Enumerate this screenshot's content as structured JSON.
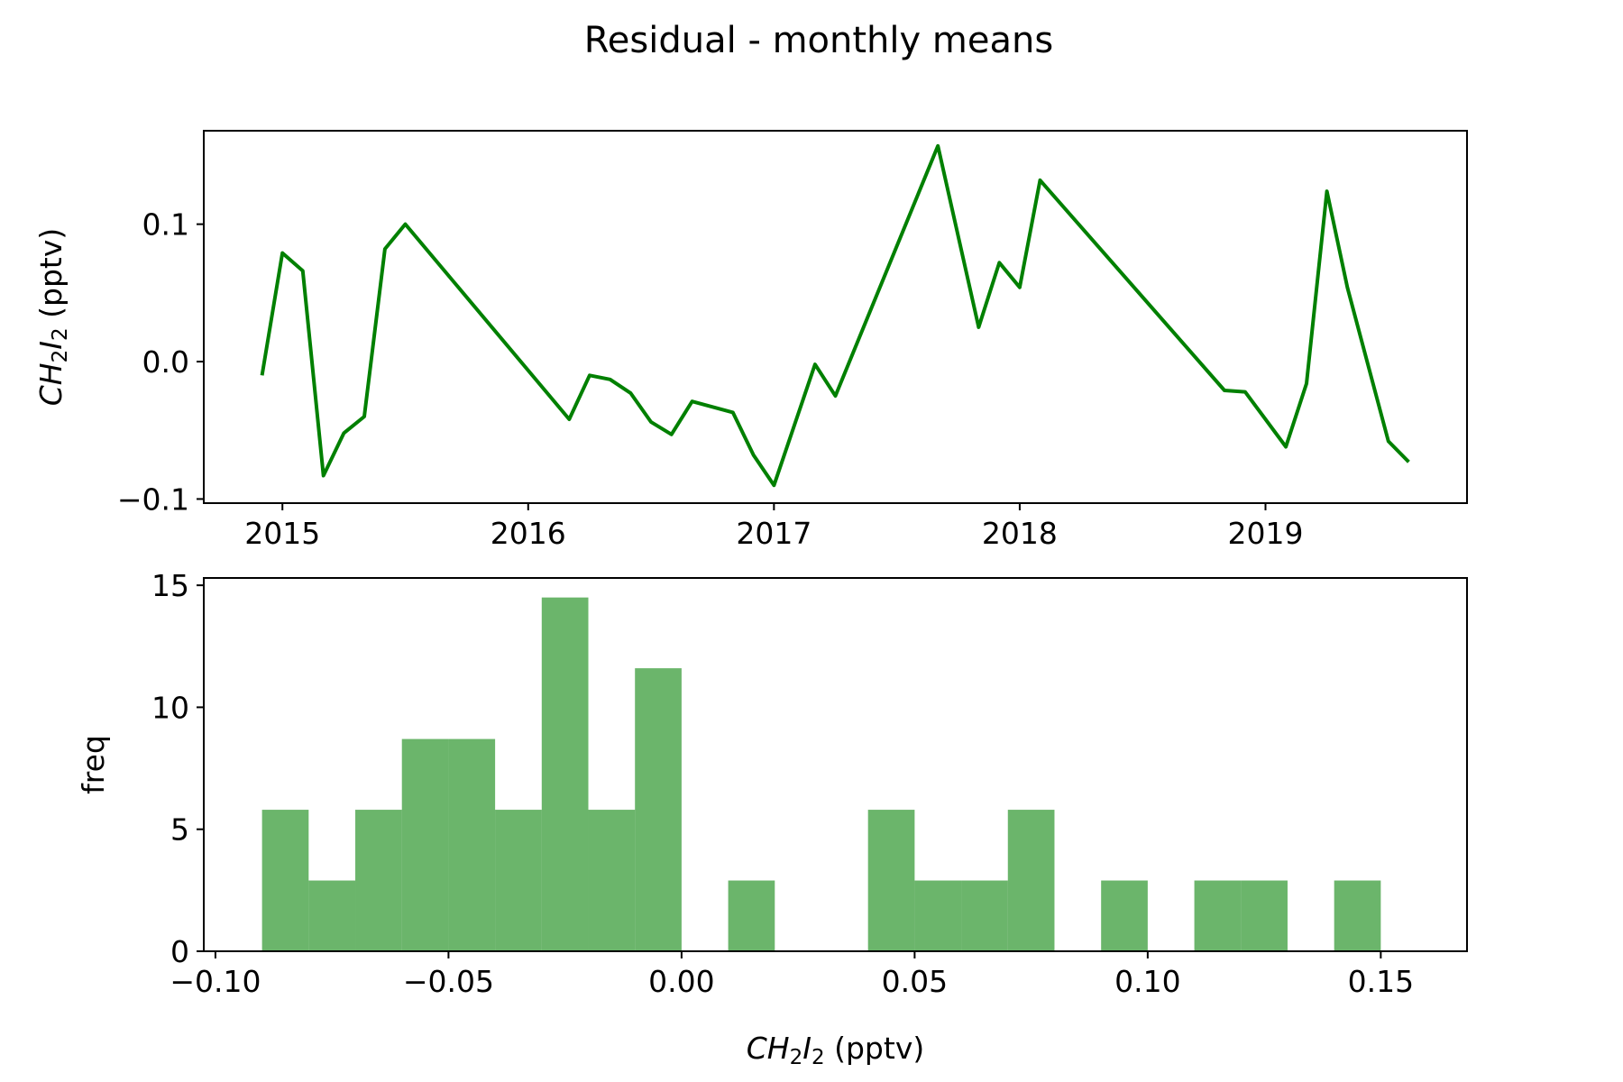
{
  "title": "Residual - monthly means",
  "colors": {
    "line": "#008000",
    "hist_fill": "#008000",
    "hist_opacity": 0.58
  },
  "chart_data": [
    {
      "type": "line",
      "xlabel": "",
      "ylabel": "CH2I2 (pptv)",
      "ylabel_parts": {
        "base1": "CH",
        "sub1": "2",
        "base2": "I",
        "sub2": "2",
        "unit": " (pptv)"
      },
      "xlim": [
        2014.68,
        2019.82
      ],
      "ylim": [
        -0.103,
        0.168
      ],
      "xticks": [
        2015,
        2016,
        2017,
        2018,
        2019
      ],
      "xtick_labels": [
        "2015",
        "2016",
        "2017",
        "2018",
        "2019"
      ],
      "yticks": [
        -0.1,
        0.0,
        0.1
      ],
      "ytick_labels": [
        "−0.1",
        "0.0",
        "0.1"
      ],
      "grid": false,
      "series": [
        {
          "x": [
            2014.917,
            2015.0,
            2015.083,
            2015.167,
            2015.25,
            2015.333,
            2015.417,
            2015.5,
            2016.167,
            2016.25,
            2016.333,
            2016.417,
            2016.5,
            2016.583,
            2016.667,
            2016.833,
            2016.917,
            2017.0,
            2017.167,
            2017.25,
            2017.667,
            2017.833,
            2017.917,
            2018.0,
            2018.083,
            2018.833,
            2018.917,
            2019.083,
            2019.167,
            2019.25,
            2019.333,
            2019.5,
            2019.583
          ],
          "y": [
            -0.01,
            0.079,
            0.066,
            -0.083,
            -0.052,
            -0.04,
            0.082,
            0.1,
            -0.042,
            -0.01,
            -0.013,
            -0.023,
            -0.044,
            -0.053,
            -0.029,
            -0.037,
            -0.068,
            -0.09,
            -0.002,
            -0.025,
            0.157,
            0.025,
            0.072,
            0.054,
            0.132,
            -0.021,
            -0.022,
            -0.062,
            -0.016,
            0.124,
            0.054,
            -0.058,
            -0.073
          ]
        }
      ]
    },
    {
      "type": "bar",
      "subtype": "histogram",
      "xlabel": "CH2I2 (pptv)",
      "xlabel_parts": {
        "base1": "CH",
        "sub1": "2",
        "base2": "I",
        "sub2": "2",
        "unit": " (pptv)"
      },
      "ylabel": "freq",
      "xlim": [
        -0.1025,
        0.1685
      ],
      "ylim": [
        0,
        15.3
      ],
      "xticks": [
        -0.1,
        -0.05,
        0.0,
        0.05,
        0.1,
        0.15
      ],
      "xtick_labels": [
        "−0.10",
        "−0.05",
        "0.00",
        "0.05",
        "0.10",
        "0.15"
      ],
      "yticks": [
        0,
        5,
        10,
        15
      ],
      "ytick_labels": [
        "0",
        "5",
        "10",
        "15"
      ],
      "grid": false,
      "bin_edges": [
        -0.09,
        -0.08,
        -0.07,
        -0.06,
        -0.05,
        -0.04,
        -0.03,
        -0.02,
        -0.01,
        0.0,
        0.01,
        0.02,
        0.03,
        0.04,
        0.05,
        0.06,
        0.07,
        0.08,
        0.09,
        0.1,
        0.11,
        0.12,
        0.13,
        0.14,
        0.15,
        0.16
      ],
      "values": [
        5.8,
        2.9,
        5.8,
        8.7,
        8.7,
        5.8,
        14.5,
        5.8,
        11.6,
        0,
        2.9,
        0,
        0,
        5.8,
        2.9,
        2.9,
        5.8,
        0,
        2.9,
        0,
        2.9,
        2.9,
        0,
        2.9,
        0
      ]
    }
  ]
}
